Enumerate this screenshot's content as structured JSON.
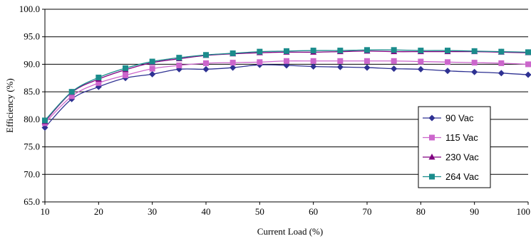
{
  "chart_data": {
    "type": "line",
    "title": "",
    "xlabel": "Current Load (%)",
    "ylabel": "Efficiency  (%)",
    "xlim": [
      10,
      100
    ],
    "ylim": [
      65,
      100
    ],
    "x_ticks": [
      10,
      20,
      30,
      40,
      50,
      60,
      70,
      80,
      90,
      100
    ],
    "x_tick_labels": [
      "10",
      "20",
      "30",
      "40",
      "50",
      "60",
      "70",
      "80",
      "90",
      "100"
    ],
    "y_ticks": [
      65,
      70,
      75,
      80,
      85,
      90,
      95,
      100
    ],
    "y_tick_labels": [
      "65.0",
      "70.0",
      "75.0",
      "80.0",
      "85.0",
      "90.0",
      "95.0",
      "100.0"
    ],
    "grid": "horizontal",
    "legend_position": "right",
    "x": [
      10,
      15,
      20,
      25,
      30,
      35,
      40,
      45,
      50,
      55,
      60,
      65,
      70,
      75,
      80,
      85,
      90,
      95,
      100
    ],
    "series": [
      {
        "name": "90 Vac",
        "marker": "diamond",
        "color": "#2E3192",
        "values": [
          78.5,
          83.7,
          85.9,
          87.5,
          88.2,
          89.1,
          89.1,
          89.4,
          89.9,
          89.8,
          89.6,
          89.5,
          89.4,
          89.2,
          89.1,
          88.8,
          88.6,
          88.4,
          88.1
        ]
      },
      {
        "name": "115 Vac",
        "marker": "square",
        "color": "#CC66CC",
        "values": [
          79.3,
          84.2,
          86.6,
          88.0,
          89.2,
          89.8,
          90.2,
          90.3,
          90.4,
          90.6,
          90.6,
          90.6,
          90.6,
          90.6,
          90.5,
          90.4,
          90.3,
          90.2,
          90.0
        ]
      },
      {
        "name": "230 Vac",
        "marker": "triangle",
        "color": "#800080",
        "values": [
          79.6,
          84.9,
          87.3,
          89.0,
          90.3,
          91.0,
          91.6,
          91.9,
          92.1,
          92.2,
          92.2,
          92.3,
          92.4,
          92.3,
          92.3,
          92.3,
          92.3,
          92.2,
          92.1
        ]
      },
      {
        "name": "264 Vac",
        "marker": "square",
        "color": "#1B8C8C",
        "values": [
          79.8,
          85.0,
          87.6,
          89.3,
          90.5,
          91.2,
          91.7,
          92.0,
          92.3,
          92.4,
          92.5,
          92.5,
          92.6,
          92.6,
          92.5,
          92.5,
          92.4,
          92.3,
          92.2
        ]
      }
    ]
  }
}
